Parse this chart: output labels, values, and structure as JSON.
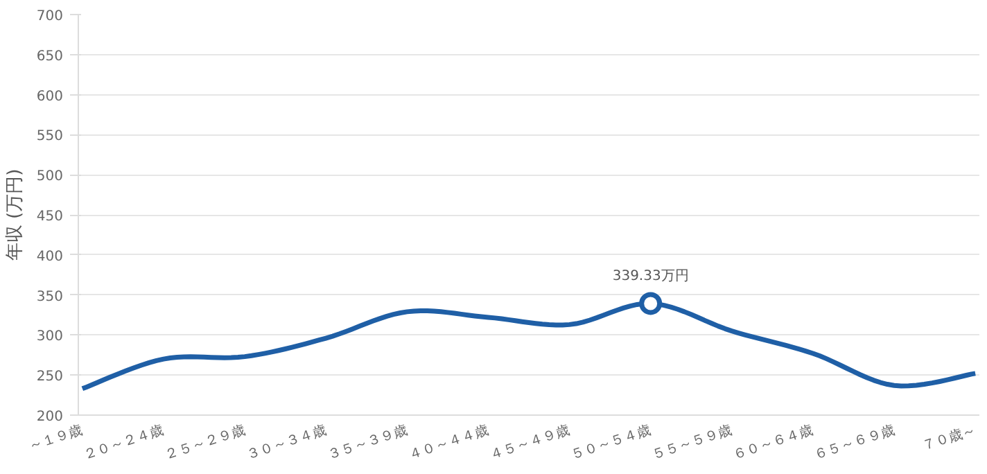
{
  "chart_data": {
    "type": "line",
    "ylabel": "年収 (万円)",
    "categories": [
      "～１９歳",
      "２０～２４歳",
      "２５～２９歳",
      "３０～３４歳",
      "３５～３９歳",
      "４０～４４歳",
      "４５～４９歳",
      "５０～５４歳",
      "５５～５９歳",
      "６０～６４歳",
      "６５～６９歳",
      "７０歳～"
    ],
    "series": [
      {
        "color": "#1f5fa6",
        "values": [
          233,
          270,
          273,
          296,
          329,
          322,
          313,
          339.33,
          305,
          277,
          237,
          252
        ]
      }
    ],
    "ylim": [
      200,
      700
    ],
    "yticks": [
      200,
      250,
      300,
      350,
      400,
      450,
      500,
      550,
      600,
      650,
      700
    ],
    "grid": "y",
    "marker": "none",
    "line_style": "solid",
    "annotations": [
      {
        "text": "339.33万円",
        "x": "５０～５４歳",
        "y": 339.33
      }
    ]
  }
}
